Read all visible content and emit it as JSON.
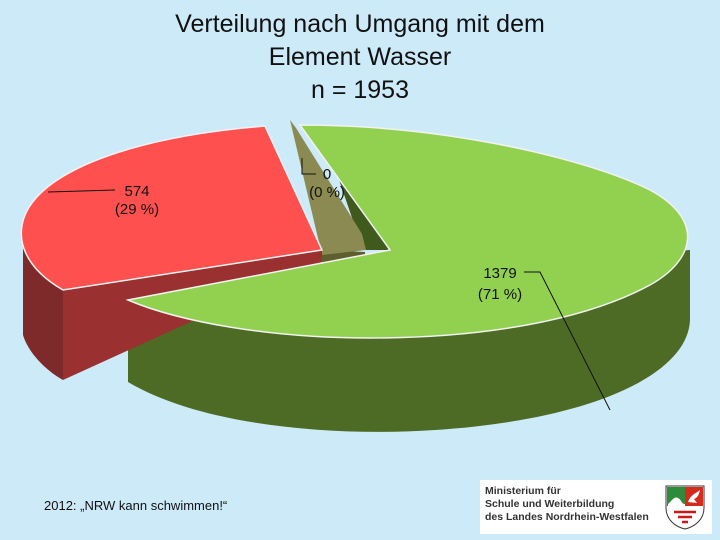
{
  "chart_data": {
    "type": "pie",
    "title_lines": [
      "Verteilung nach Umgang mit dem",
      "Element Wasser",
      "n = 1953"
    ],
    "slices": [
      {
        "value": 1379,
        "label": "1379",
        "percent_label": "(71 %)",
        "color": "#92d050"
      },
      {
        "value": 574,
        "label": "574",
        "percent_label": "(29 %)",
        "color": "#ff5050"
      },
      {
        "value": 0,
        "label": "0",
        "percent_label": "(0 %)",
        "color": "#8a8a52"
      }
    ],
    "style": "3d-exploded"
  },
  "footer": {
    "text": "2012: „NRW kann schwimmen!“"
  },
  "logo": {
    "lines": [
      "Ministerium für",
      "Schule und Weiterbildung",
      "des Landes Nordrhein-Westfalen"
    ],
    "icon": "nrw-crest-icon"
  }
}
